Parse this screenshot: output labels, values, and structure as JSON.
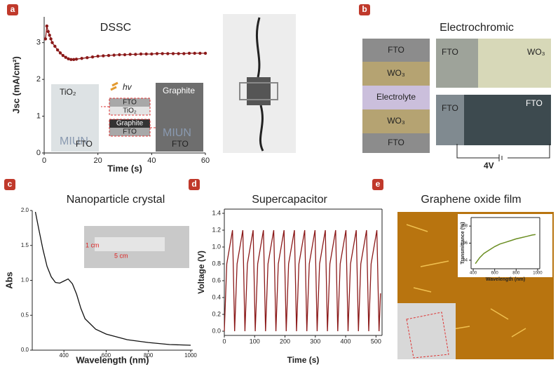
{
  "panel_letters": [
    "a",
    "b",
    "c",
    "d",
    "e"
  ],
  "dssc_photo": {
    "left": [
      "TiO₂",
      "FTO"
    ],
    "light": "hv",
    "stack": [
      "FTO",
      "TiO₂",
      "Graphite",
      "FTO"
    ],
    "right": [
      "Graphite",
      "FTO"
    ],
    "logo": "MIUN"
  },
  "electrochromic": {
    "title": "Electrochromic",
    "layers": [
      "FTO",
      "WO₃",
      "Electrolyte",
      "WO₃",
      "FTO"
    ],
    "photo_labels": [
      "FTO",
      "WO₃",
      "FTO",
      "FTO"
    ],
    "voltage": "4V"
  },
  "nanoparticle_photo": [
    "1 cm",
    "5 cm"
  ],
  "graphene": {
    "title": "Graphene oxide film"
  },
  "chart_data": [
    {
      "type": "line",
      "title": "DSSC",
      "x_label": "Time (s)",
      "y_label": "Jsc (mA/cm²)",
      "color": "#8b1a1a",
      "markers": true,
      "x": [
        0.5,
        1,
        1.5,
        2,
        2.5,
        3,
        4,
        5,
        6,
        7,
        8,
        9,
        10,
        11,
        12,
        14,
        16,
        18,
        20,
        22,
        24,
        26,
        28,
        30,
        32,
        34,
        36,
        38,
        40,
        42,
        44,
        46,
        48,
        50,
        52,
        54,
        56,
        58,
        60
      ],
      "values": [
        3.1,
        3.45,
        3.3,
        3.2,
        3.1,
        3.0,
        2.9,
        2.8,
        2.72,
        2.65,
        2.6,
        2.56,
        2.54,
        2.54,
        2.55,
        2.57,
        2.59,
        2.61,
        2.63,
        2.64,
        2.65,
        2.66,
        2.67,
        2.67,
        2.68,
        2.68,
        2.69,
        2.69,
        2.69,
        2.7,
        2.7,
        2.7,
        2.7,
        2.7,
        2.7,
        2.71,
        2.71,
        2.71,
        2.71
      ],
      "xlim": [
        0,
        60
      ],
      "ylim": [
        0,
        3.7
      ],
      "xticks": [
        0,
        20,
        40,
        60
      ],
      "yticks": [
        0,
        1,
        2,
        3
      ]
    },
    {
      "type": "line",
      "title": "Nanoparticle crystal",
      "x_label": "Wavelength (nm)",
      "y_label": "Abs",
      "color": "#111111",
      "markers": false,
      "x": [
        265,
        280,
        300,
        320,
        340,
        360,
        380,
        400,
        420,
        440,
        460,
        480,
        500,
        550,
        600,
        700,
        800,
        900,
        1000
      ],
      "values": [
        1.98,
        1.75,
        1.45,
        1.2,
        1.05,
        0.97,
        0.96,
        0.99,
        1.02,
        0.95,
        0.8,
        0.6,
        0.45,
        0.3,
        0.23,
        0.15,
        0.11,
        0.08,
        0.07
      ],
      "xlim": [
        250,
        1010
      ],
      "ylim": [
        0,
        2.0
      ],
      "xticks": [
        400,
        600,
        800,
        1000
      ],
      "yticks": [
        {
          "value": 0,
          "label": "0.0"
        },
        {
          "value": 0.5,
          "label": "0.5"
        },
        {
          "value": 1,
          "label": "1.0"
        },
        {
          "value": 1.5,
          "label": "1.5"
        },
        {
          "value": 2,
          "label": "2.0"
        }
      ]
    },
    {
      "type": "line",
      "title": "Supercapacitor",
      "x_label": "Time (s)",
      "y_label": "Voltage (V)",
      "color": "#8b1a1a",
      "markers": false,
      "x": [
        0,
        8,
        27,
        34,
        42,
        61,
        68,
        76,
        95,
        102,
        110,
        129,
        136,
        144,
        163,
        170,
        178,
        197,
        204,
        212,
        231,
        238,
        246,
        265,
        272,
        280,
        299,
        306,
        314,
        333,
        340,
        348,
        367,
        374,
        382,
        401,
        408,
        416,
        435,
        442,
        450,
        469,
        476,
        484,
        503,
        510,
        515
      ],
      "values": [
        0,
        0.8,
        1.2,
        0,
        0.8,
        1.2,
        0,
        0.8,
        1.2,
        0,
        0.8,
        1.2,
        0,
        0.8,
        1.2,
        0,
        0.8,
        1.2,
        0,
        0.8,
        1.2,
        0,
        0.8,
        1.2,
        0,
        0.8,
        1.2,
        0,
        0.8,
        1.2,
        0,
        0.8,
        1.2,
        0,
        0.8,
        1.2,
        0,
        0.8,
        1.2,
        0,
        0.8,
        1.2,
        0,
        0.8,
        1.2,
        0,
        0.45
      ],
      "xlim": [
        0,
        520
      ],
      "ylim": [
        -0.05,
        1.45
      ],
      "xticks": [
        0,
        100,
        200,
        300,
        400,
        500
      ],
      "yticks": [
        {
          "value": 0,
          "label": "0.0"
        },
        {
          "value": 0.2,
          "label": "0.2"
        },
        {
          "value": 0.4,
          "label": "0.4"
        },
        {
          "value": 0.6,
          "label": "0.6"
        },
        {
          "value": 0.8,
          "label": "0.8"
        },
        {
          "value": 1,
          "label": "1.0"
        },
        {
          "value": 1.2,
          "label": "1.2"
        },
        {
          "value": 1.4,
          "label": "1.4"
        }
      ]
    },
    {
      "type": "line",
      "x_label": "Wavelength (nm)",
      "y_label": "Transmittance (%)",
      "color": "#6b8e23",
      "markers": false,
      "x": [
        420,
        460,
        500,
        550,
        600,
        650,
        700,
        750,
        800,
        850,
        900,
        950,
        980
      ],
      "values": [
        93.6,
        94.3,
        94.8,
        95.2,
        95.6,
        95.9,
        96.1,
        96.3,
        96.5,
        96.65,
        96.8,
        96.95,
        97.0
      ],
      "xlim": [
        380,
        1020
      ],
      "ylim": [
        93,
        99
      ],
      "xticks": [
        400,
        600,
        800,
        1000
      ],
      "yticks": [
        94,
        96,
        98
      ]
    }
  ]
}
